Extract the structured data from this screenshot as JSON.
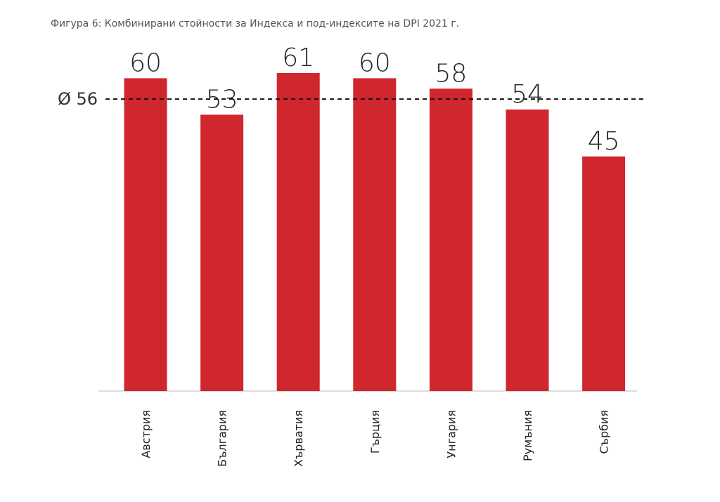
{
  "chart_data": {
    "type": "bar",
    "title": "Фигура 6: Комбинирани стойности за Индекса и под-индексите на DPI 2021 г.",
    "categories": [
      "Австрия",
      "България",
      "Хърватия",
      "Гърция",
      "Унгария",
      "Румъния",
      "Сърбия"
    ],
    "values": [
      60,
      53,
      61,
      60,
      58,
      54,
      45
    ],
    "data_labels": [
      "60",
      "53",
      "61",
      "60",
      "58",
      "54",
      "45"
    ],
    "average": {
      "value": 56,
      "label": "Ø 56",
      "style": "dashed"
    },
    "ylim": [
      0,
      61
    ],
    "grid": false,
    "colors": {
      "bar": "#d0262d",
      "average_line": "#111111",
      "baseline": "#bbbbbb"
    }
  }
}
